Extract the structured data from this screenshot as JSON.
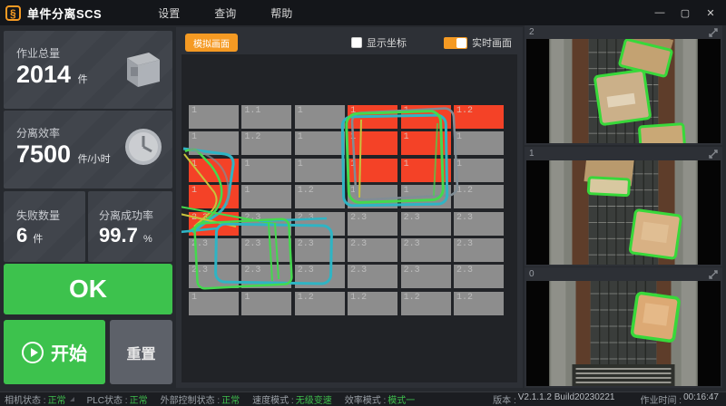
{
  "window": {
    "title": "单件分离SCS",
    "menu": [
      {
        "label": "设置"
      },
      {
        "label": "查询"
      },
      {
        "label": "帮助"
      }
    ],
    "controls": {
      "minimize": "—",
      "maximize": "▢",
      "close": "✕"
    }
  },
  "stats": {
    "total": {
      "label": "作业总量",
      "value": "2014",
      "unit": "件"
    },
    "efficiency": {
      "label": "分离效率",
      "value": "7500",
      "unit": "件/小时"
    },
    "failed": {
      "label": "失败数量",
      "value": "6",
      "unit": "件"
    },
    "success_rate": {
      "label": "分离成功率",
      "value": "99.7",
      "unit": "%"
    }
  },
  "actions": {
    "ok": "OK",
    "start": "开始",
    "reset": "重置"
  },
  "center": {
    "sim_button": "模拟画面",
    "show_coords_label": "显示坐标",
    "show_coords_checked": false,
    "realtime_label": "实时画面",
    "realtime_on": true,
    "grid": {
      "labels": [
        [
          "1",
          "1.1",
          "1",
          "1",
          "1",
          "1.2"
        ],
        [
          "1",
          "1.2",
          "1",
          "1",
          "1",
          "1"
        ],
        [
          "1",
          "1",
          "1",
          "1",
          "1",
          "1"
        ],
        [
          "1",
          "1",
          "1.2",
          "1",
          "1",
          "1.2"
        ],
        [
          "2.3",
          "2.3",
          "2.3",
          "2.3",
          "2.3",
          "2.3"
        ],
        [
          "2.3",
          "2.3",
          "2.3",
          "2.3",
          "2.3",
          "2.3"
        ],
        [
          "2.3",
          "2.3",
          "2.3",
          "2.3",
          "2.3",
          "2.3"
        ],
        [
          "1",
          "1",
          "1.2",
          "1.2",
          "1.2",
          "1.2"
        ]
      ],
      "red_cells": [
        [
          0,
          3
        ],
        [
          0,
          4
        ],
        [
          0,
          5
        ],
        [
          1,
          3
        ],
        [
          1,
          4
        ],
        [
          2,
          0
        ],
        [
          2,
          3
        ],
        [
          2,
          4
        ],
        [
          3,
          0
        ],
        [
          4,
          0
        ]
      ]
    }
  },
  "cameras": [
    {
      "label": "2"
    },
    {
      "label": "1"
    },
    {
      "label": "0"
    }
  ],
  "statusbar": {
    "items": [
      {
        "label": "相机状态 :",
        "value": "正常"
      },
      {
        "label": "PLC状态 :",
        "value": "正常"
      },
      {
        "label": "外部控制状态 :",
        "value": "正常"
      },
      {
        "label": "速度模式 :",
        "value": "无级变速"
      },
      {
        "label": "效率模式 :",
        "value": "模式一"
      }
    ],
    "version_label": "版本 :",
    "version_value": "V2.1.1.2 Build20230221",
    "time_label": "作业时间 :",
    "time_value": "00:16:47"
  },
  "colors": {
    "accent_orange": "#f59a23",
    "ok_green": "#3dc24d",
    "cell_red": "#f44227",
    "status_green": "#3fbf4d",
    "outline_green": "#44d94e",
    "outline_teal": "#2fb4c4",
    "outline_yellow": "#c8c23c"
  }
}
